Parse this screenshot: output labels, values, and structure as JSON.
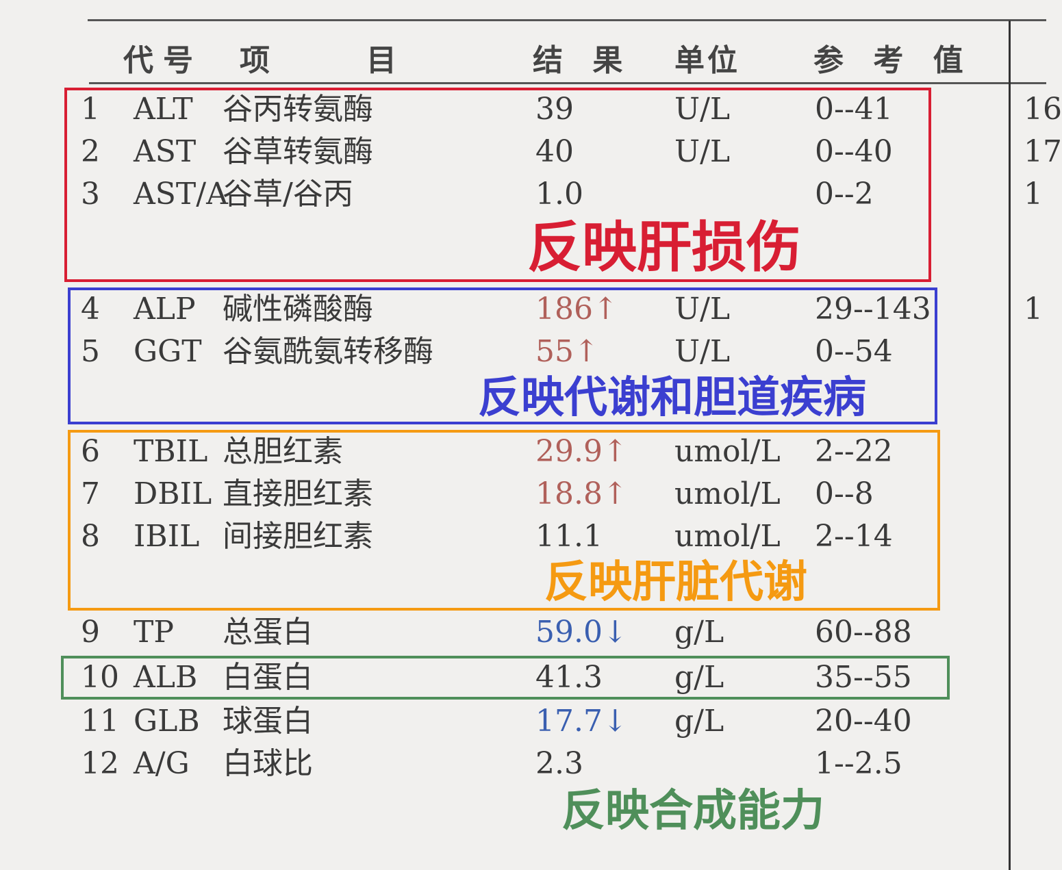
{
  "header": {
    "code": "代号",
    "item_a": "项",
    "item_b": "目",
    "result": "结 果",
    "unit": "单位",
    "ref": "参 考 值"
  },
  "rows": [
    {
      "no": "1",
      "code": "ALT",
      "name": "谷丙转氨酶",
      "result": "39",
      "unit": "U/L",
      "ref": "0--41",
      "flag": "",
      "edge": "16"
    },
    {
      "no": "2",
      "code": "AST",
      "name": "谷草转氨酶",
      "result": "40",
      "unit": "U/L",
      "ref": "0--40",
      "flag": "",
      "edge": "17"
    },
    {
      "no": "3",
      "code": "AST/A",
      "name": "谷草/谷丙",
      "result": "1.0",
      "unit": "",
      "ref": "0--2",
      "flag": "",
      "edge": "1"
    },
    {
      "no": "4",
      "code": "ALP",
      "name": "碱性磷酸酶",
      "result": "186↑",
      "unit": "U/L",
      "ref": "29--143",
      "flag": "high",
      "edge": "1"
    },
    {
      "no": "5",
      "code": "GGT",
      "name": "谷氨酰氨转移酶",
      "result": "55↑",
      "unit": "U/L",
      "ref": "0--54",
      "flag": "high",
      "edge": ""
    },
    {
      "no": "6",
      "code": "TBIL",
      "name": "总胆红素",
      "result": "29.9↑",
      "unit": "umol/L",
      "ref": "2--22",
      "flag": "high",
      "edge": ""
    },
    {
      "no": "7",
      "code": "DBIL",
      "name": "直接胆红素",
      "result": "18.8↑",
      "unit": "umol/L",
      "ref": "0--8",
      "flag": "high",
      "edge": ""
    },
    {
      "no": "8",
      "code": "IBIL",
      "name": "间接胆红素",
      "result": "11.1",
      "unit": "umol/L",
      "ref": "2--14",
      "flag": "",
      "edge": ""
    },
    {
      "no": "9",
      "code": "TP",
      "name": "总蛋白",
      "result": "59.0↓",
      "unit": "g/L",
      "ref": "60--88",
      "flag": "low",
      "edge": ""
    },
    {
      "no": "10",
      "code": "ALB",
      "name": "白蛋白",
      "result": "41.3",
      "unit": "g/L",
      "ref": "35--55",
      "flag": "",
      "edge": ""
    },
    {
      "no": "11",
      "code": "GLB",
      "name": "球蛋白",
      "result": "17.7↓",
      "unit": "g/L",
      "ref": "20--40",
      "flag": "low",
      "edge": ""
    },
    {
      "no": "12",
      "code": "A/G",
      "name": "白球比",
      "result": "2.3",
      "unit": "",
      "ref": "1--2.5",
      "flag": "",
      "edge": ""
    }
  ],
  "annotations": [
    {
      "text": "反映肝损伤",
      "color": "#d81e33"
    },
    {
      "text": "反映代谢和胆道疾病",
      "color": "#3b3fd0"
    },
    {
      "text": "反映肝脏代谢",
      "color": "#f59a12"
    },
    {
      "text": "反映合成能力",
      "color": "#4f8f5a"
    }
  ]
}
